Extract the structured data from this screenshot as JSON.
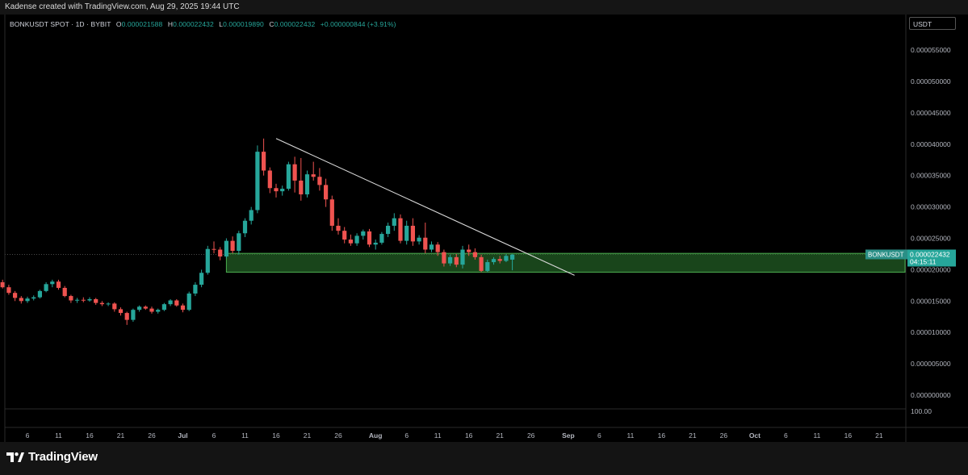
{
  "header": {
    "attribution": "Kadense created with TradingView.com, Aug 29, 2025 19:44 UTC"
  },
  "legend": {
    "symbol": "BONKUSDT SPOT · 1D · BYBIT",
    "o_label": "O",
    "o_value": "0.000021588",
    "h_label": "H",
    "h_value": "0.000022432",
    "l_label": "L",
    "l_value": "0.000019890",
    "c_label": "C",
    "c_value": "0.000022432",
    "change": "+0.000000844 (+3.91%)"
  },
  "price_axis": {
    "currency": "USDT",
    "extra_label": "100.00"
  },
  "price_tag": {
    "symbol": "BONKUSDT",
    "price": "0.000022432",
    "countdown": "04:15:11"
  },
  "brand": {
    "name": "TradingView"
  },
  "colors": {
    "up": "#26a69a",
    "down": "#ef5350",
    "zone": "#2e7d32",
    "trendline": "#d9d9d9"
  },
  "chart_data": {
    "type": "candlestick",
    "title": "",
    "xlabel": "",
    "ylabel": "",
    "ylim": [
      0.0,
      5.7e-05
    ],
    "y_ticks": [
      "0.000055000",
      "0.000050000",
      "0.000045000",
      "0.000040000",
      "0.000035000",
      "0.000030000",
      "0.000025000",
      "0.000020000",
      "0.000015000",
      "0.000010000",
      "0.000005000",
      "0.000000000"
    ],
    "y_tick_values": [
      5.5e-05,
      5e-05,
      4.5e-05,
      4e-05,
      3.5e-05,
      3e-05,
      2.5e-05,
      2e-05,
      1.5e-05,
      1e-05,
      5e-06,
      0.0
    ],
    "x_ticks": [
      {
        "label": "6",
        "date": "2025-06-06"
      },
      {
        "label": "11",
        "date": "2025-06-11"
      },
      {
        "label": "16",
        "date": "2025-06-16"
      },
      {
        "label": "21",
        "date": "2025-06-21"
      },
      {
        "label": "26",
        "date": "2025-06-26"
      },
      {
        "label": "Jul",
        "date": "2025-07-01"
      },
      {
        "label": "6",
        "date": "2025-07-06"
      },
      {
        "label": "11",
        "date": "2025-07-11"
      },
      {
        "label": "16",
        "date": "2025-07-16"
      },
      {
        "label": "21",
        "date": "2025-07-21"
      },
      {
        "label": "26",
        "date": "2025-07-26"
      },
      {
        "label": "Aug",
        "date": "2025-08-01"
      },
      {
        "label": "6",
        "date": "2025-08-06"
      },
      {
        "label": "11",
        "date": "2025-08-11"
      },
      {
        "label": "16",
        "date": "2025-08-16"
      },
      {
        "label": "21",
        "date": "2025-08-21"
      },
      {
        "label": "26",
        "date": "2025-08-26"
      },
      {
        "label": "Sep",
        "date": "2025-09-01"
      },
      {
        "label": "6",
        "date": "2025-09-06"
      },
      {
        "label": "11",
        "date": "2025-09-11"
      },
      {
        "label": "16",
        "date": "2025-09-16"
      },
      {
        "label": "21",
        "date": "2025-09-21"
      },
      {
        "label": "26",
        "date": "2025-09-26"
      },
      {
        "label": "Oct",
        "date": "2025-10-01"
      },
      {
        "label": "6",
        "date": "2025-10-06"
      },
      {
        "label": "11",
        "date": "2025-10-11"
      },
      {
        "label": "16",
        "date": "2025-10-16"
      },
      {
        "label": "21",
        "date": "2025-10-21"
      }
    ],
    "x_range": [
      "2025-06-02",
      "2025-10-25"
    ],
    "support_zone": {
      "from_date": "2025-07-08",
      "to_date": "2025-10-25",
      "low": 1.96e-05,
      "high": 2.26e-05
    },
    "trendline": {
      "start": {
        "date": "2025-07-16",
        "price": 4.09e-05
      },
      "end": {
        "date": "2025-09-02",
        "price": 1.91e-05
      }
    },
    "last_price_line": 2.2432e-05,
    "candles": [
      {
        "date": "2025-06-02",
        "o": 1.8e-05,
        "h": 1.84e-05,
        "l": 1.7e-05,
        "c": 1.72e-05
      },
      {
        "date": "2025-06-03",
        "o": 1.72e-05,
        "h": 1.76e-05,
        "l": 1.6e-05,
        "c": 1.63e-05
      },
      {
        "date": "2025-06-04",
        "o": 1.63e-05,
        "h": 1.66e-05,
        "l": 1.5e-05,
        "c": 1.55e-05
      },
      {
        "date": "2025-06-05",
        "o": 1.55e-05,
        "h": 1.58e-05,
        "l": 1.46e-05,
        "c": 1.5e-05
      },
      {
        "date": "2025-06-06",
        "o": 1.5e-05,
        "h": 1.57e-05,
        "l": 1.47e-05,
        "c": 1.54e-05
      },
      {
        "date": "2025-06-07",
        "o": 1.54e-05,
        "h": 1.59e-05,
        "l": 1.51e-05,
        "c": 1.56e-05
      },
      {
        "date": "2025-06-08",
        "o": 1.56e-05,
        "h": 1.68e-05,
        "l": 1.54e-05,
        "c": 1.66e-05
      },
      {
        "date": "2025-06-09",
        "o": 1.66e-05,
        "h": 1.8e-05,
        "l": 1.64e-05,
        "c": 1.77e-05
      },
      {
        "date": "2025-06-10",
        "o": 1.77e-05,
        "h": 1.84e-05,
        "l": 1.72e-05,
        "c": 1.81e-05
      },
      {
        "date": "2025-06-11",
        "o": 1.81e-05,
        "h": 1.84e-05,
        "l": 1.68e-05,
        "c": 1.71e-05
      },
      {
        "date": "2025-06-12",
        "o": 1.71e-05,
        "h": 1.74e-05,
        "l": 1.56e-05,
        "c": 1.58e-05
      },
      {
        "date": "2025-06-13",
        "o": 1.58e-05,
        "h": 1.6e-05,
        "l": 1.47e-05,
        "c": 1.51e-05
      },
      {
        "date": "2025-06-14",
        "o": 1.51e-05,
        "h": 1.55e-05,
        "l": 1.47e-05,
        "c": 1.52e-05
      },
      {
        "date": "2025-06-15",
        "o": 1.52e-05,
        "h": 1.56e-05,
        "l": 1.48e-05,
        "c": 1.51e-05
      },
      {
        "date": "2025-06-16",
        "o": 1.51e-05,
        "h": 1.56e-05,
        "l": 1.49e-05,
        "c": 1.53e-05
      },
      {
        "date": "2025-06-17",
        "o": 1.53e-05,
        "h": 1.55e-05,
        "l": 1.44e-05,
        "c": 1.47e-05
      },
      {
        "date": "2025-06-18",
        "o": 1.47e-05,
        "h": 1.5e-05,
        "l": 1.42e-05,
        "c": 1.45e-05
      },
      {
        "date": "2025-06-19",
        "o": 1.45e-05,
        "h": 1.48e-05,
        "l": 1.42e-05,
        "c": 1.46e-05
      },
      {
        "date": "2025-06-20",
        "o": 1.46e-05,
        "h": 1.48e-05,
        "l": 1.33e-05,
        "c": 1.37e-05
      },
      {
        "date": "2025-06-21",
        "o": 1.37e-05,
        "h": 1.4e-05,
        "l": 1.27e-05,
        "c": 1.31e-05
      },
      {
        "date": "2025-06-22",
        "o": 1.31e-05,
        "h": 1.33e-05,
        "l": 1.12e-05,
        "c": 1.2e-05
      },
      {
        "date": "2025-06-23",
        "o": 1.2e-05,
        "h": 1.38e-05,
        "l": 1.17e-05,
        "c": 1.36e-05
      },
      {
        "date": "2025-06-24",
        "o": 1.36e-05,
        "h": 1.43e-05,
        "l": 1.33e-05,
        "c": 1.41e-05
      },
      {
        "date": "2025-06-25",
        "o": 1.41e-05,
        "h": 1.43e-05,
        "l": 1.36e-05,
        "c": 1.38e-05
      },
      {
        "date": "2025-06-26",
        "o": 1.38e-05,
        "h": 1.41e-05,
        "l": 1.3e-05,
        "c": 1.33e-05
      },
      {
        "date": "2025-06-27",
        "o": 1.33e-05,
        "h": 1.38e-05,
        "l": 1.3e-05,
        "c": 1.36e-05
      },
      {
        "date": "2025-06-28",
        "o": 1.36e-05,
        "h": 1.47e-05,
        "l": 1.34e-05,
        "c": 1.45e-05
      },
      {
        "date": "2025-06-29",
        "o": 1.45e-05,
        "h": 1.53e-05,
        "l": 1.42e-05,
        "c": 1.51e-05
      },
      {
        "date": "2025-06-30",
        "o": 1.51e-05,
        "h": 1.53e-05,
        "l": 1.41e-05,
        "c": 1.43e-05
      },
      {
        "date": "2025-07-01",
        "o": 1.43e-05,
        "h": 1.46e-05,
        "l": 1.32e-05,
        "c": 1.36e-05
      },
      {
        "date": "2025-07-02",
        "o": 1.36e-05,
        "h": 1.65e-05,
        "l": 1.34e-05,
        "c": 1.62e-05
      },
      {
        "date": "2025-07-03",
        "o": 1.62e-05,
        "h": 1.8e-05,
        "l": 1.58e-05,
        "c": 1.76e-05
      },
      {
        "date": "2025-07-04",
        "o": 1.76e-05,
        "h": 2e-05,
        "l": 1.72e-05,
        "c": 1.95e-05
      },
      {
        "date": "2025-07-05",
        "o": 1.95e-05,
        "h": 2.38e-05,
        "l": 1.92e-05,
        "c": 2.33e-05
      },
      {
        "date": "2025-07-06",
        "o": 2.33e-05,
        "h": 2.45e-05,
        "l": 2.26e-05,
        "c": 2.32e-05
      },
      {
        "date": "2025-07-07",
        "o": 2.32e-05,
        "h": 2.36e-05,
        "l": 2.15e-05,
        "c": 2.21e-05
      },
      {
        "date": "2025-07-08",
        "o": 2.21e-05,
        "h": 2.5e-05,
        "l": 2.18e-05,
        "c": 2.46e-05
      },
      {
        "date": "2025-07-09",
        "o": 2.46e-05,
        "h": 2.53e-05,
        "l": 2.26e-05,
        "c": 2.3e-05
      },
      {
        "date": "2025-07-10",
        "o": 2.3e-05,
        "h": 2.62e-05,
        "l": 2.24e-05,
        "c": 2.58e-05
      },
      {
        "date": "2025-07-11",
        "o": 2.58e-05,
        "h": 2.82e-05,
        "l": 2.52e-05,
        "c": 2.78e-05
      },
      {
        "date": "2025-07-12",
        "o": 2.78e-05,
        "h": 3e-05,
        "l": 2.72e-05,
        "c": 2.95e-05
      },
      {
        "date": "2025-07-13",
        "o": 2.95e-05,
        "h": 3.98e-05,
        "l": 2.9e-05,
        "c": 3.88e-05
      },
      {
        "date": "2025-07-14",
        "o": 3.88e-05,
        "h": 4.09e-05,
        "l": 3.5e-05,
        "c": 3.58e-05
      },
      {
        "date": "2025-07-15",
        "o": 3.58e-05,
        "h": 3.63e-05,
        "l": 3.22e-05,
        "c": 3.3e-05
      },
      {
        "date": "2025-07-16",
        "o": 3.3e-05,
        "h": 3.37e-05,
        "l": 3.15e-05,
        "c": 3.25e-05
      },
      {
        "date": "2025-07-17",
        "o": 3.25e-05,
        "h": 3.34e-05,
        "l": 3.18e-05,
        "c": 3.29e-05
      },
      {
        "date": "2025-07-18",
        "o": 3.29e-05,
        "h": 3.72e-05,
        "l": 3.26e-05,
        "c": 3.68e-05
      },
      {
        "date": "2025-07-19",
        "o": 3.68e-05,
        "h": 3.8e-05,
        "l": 3.23e-05,
        "c": 3.42e-05
      },
      {
        "date": "2025-07-20",
        "o": 3.42e-05,
        "h": 3.78e-05,
        "l": 3.1e-05,
        "c": 3.2e-05
      },
      {
        "date": "2025-07-21",
        "o": 3.2e-05,
        "h": 3.58e-05,
        "l": 3.15e-05,
        "c": 3.52e-05
      },
      {
        "date": "2025-07-22",
        "o": 3.52e-05,
        "h": 3.72e-05,
        "l": 3.42e-05,
        "c": 3.48e-05
      },
      {
        "date": "2025-07-23",
        "o": 3.48e-05,
        "h": 3.62e-05,
        "l": 3.26e-05,
        "c": 3.35e-05
      },
      {
        "date": "2025-07-24",
        "o": 3.35e-05,
        "h": 3.45e-05,
        "l": 3e-05,
        "c": 3.12e-05
      },
      {
        "date": "2025-07-25",
        "o": 3.12e-05,
        "h": 3.18e-05,
        "l": 2.62e-05,
        "c": 2.7e-05
      },
      {
        "date": "2025-07-26",
        "o": 2.7e-05,
        "h": 2.82e-05,
        "l": 2.56e-05,
        "c": 2.62e-05
      },
      {
        "date": "2025-07-27",
        "o": 2.62e-05,
        "h": 2.68e-05,
        "l": 2.42e-05,
        "c": 2.48e-05
      },
      {
        "date": "2025-07-28",
        "o": 2.48e-05,
        "h": 2.56e-05,
        "l": 2.38e-05,
        "c": 2.42e-05
      },
      {
        "date": "2025-07-29",
        "o": 2.42e-05,
        "h": 2.58e-05,
        "l": 2.38e-05,
        "c": 2.54e-05
      },
      {
        "date": "2025-07-30",
        "o": 2.54e-05,
        "h": 2.64e-05,
        "l": 2.48e-05,
        "c": 2.61e-05
      },
      {
        "date": "2025-07-31",
        "o": 2.61e-05,
        "h": 2.65e-05,
        "l": 2.36e-05,
        "c": 2.4e-05
      },
      {
        "date": "2025-08-01",
        "o": 2.4e-05,
        "h": 2.48e-05,
        "l": 2.32e-05,
        "c": 2.43e-05
      },
      {
        "date": "2025-08-02",
        "o": 2.43e-05,
        "h": 2.6e-05,
        "l": 2.4e-05,
        "c": 2.57e-05
      },
      {
        "date": "2025-08-03",
        "o": 2.57e-05,
        "h": 2.75e-05,
        "l": 2.52e-05,
        "c": 2.7e-05
      },
      {
        "date": "2025-08-04",
        "o": 2.7e-05,
        "h": 2.9e-05,
        "l": 2.62e-05,
        "c": 2.82e-05
      },
      {
        "date": "2025-08-05",
        "o": 2.82e-05,
        "h": 2.88e-05,
        "l": 2.42e-05,
        "c": 2.46e-05
      },
      {
        "date": "2025-08-06",
        "o": 2.46e-05,
        "h": 2.78e-05,
        "l": 2.4e-05,
        "c": 2.7e-05
      },
      {
        "date": "2025-08-07",
        "o": 2.7e-05,
        "h": 2.82e-05,
        "l": 2.38e-05,
        "c": 2.45e-05
      },
      {
        "date": "2025-08-08",
        "o": 2.45e-05,
        "h": 2.55e-05,
        "l": 2.4e-05,
        "c": 2.51e-05
      },
      {
        "date": "2025-08-09",
        "o": 2.51e-05,
        "h": 2.75e-05,
        "l": 2.26e-05,
        "c": 2.32e-05
      },
      {
        "date": "2025-08-10",
        "o": 2.32e-05,
        "h": 2.45e-05,
        "l": 2.28e-05,
        "c": 2.4e-05
      },
      {
        "date": "2025-08-11",
        "o": 2.4e-05,
        "h": 2.44e-05,
        "l": 2.22e-05,
        "c": 2.28e-05
      },
      {
        "date": "2025-08-12",
        "o": 2.28e-05,
        "h": 2.32e-05,
        "l": 2.05e-05,
        "c": 2.1e-05
      },
      {
        "date": "2025-08-13",
        "o": 2.1e-05,
        "h": 2.24e-05,
        "l": 2.06e-05,
        "c": 2.2e-05
      },
      {
        "date": "2025-08-14",
        "o": 2.2e-05,
        "h": 2.25e-05,
        "l": 2.04e-05,
        "c": 2.08e-05
      },
      {
        "date": "2025-08-15",
        "o": 2.08e-05,
        "h": 2.38e-05,
        "l": 2.02e-05,
        "c": 2.32e-05
      },
      {
        "date": "2025-08-16",
        "o": 2.32e-05,
        "h": 2.4e-05,
        "l": 2.22e-05,
        "c": 2.28e-05
      },
      {
        "date": "2025-08-17",
        "o": 2.28e-05,
        "h": 2.34e-05,
        "l": 2.16e-05,
        "c": 2.2e-05
      },
      {
        "date": "2025-08-18",
        "o": 2.2e-05,
        "h": 2.24e-05,
        "l": 1.96e-05,
        "c": 1.98e-05
      },
      {
        "date": "2025-08-19",
        "o": 1.98e-05,
        "h": 2.16e-05,
        "l": 1.96e-05,
        "c": 2.12e-05
      },
      {
        "date": "2025-08-20",
        "o": 2.12e-05,
        "h": 2.2e-05,
        "l": 2.08e-05,
        "c": 2.17e-05
      },
      {
        "date": "2025-08-21",
        "o": 2.17e-05,
        "h": 2.22e-05,
        "l": 2.1e-05,
        "c": 2.14e-05
      },
      {
        "date": "2025-08-22",
        "o": 2.14e-05,
        "h": 2.25e-05,
        "l": 2.12e-05,
        "c": 2.22e-05
      },
      {
        "date": "2025-08-23",
        "o": 2.16e-05,
        "h": 2.25e-05,
        "l": 1.99e-05,
        "c": 2.24e-05
      }
    ]
  }
}
